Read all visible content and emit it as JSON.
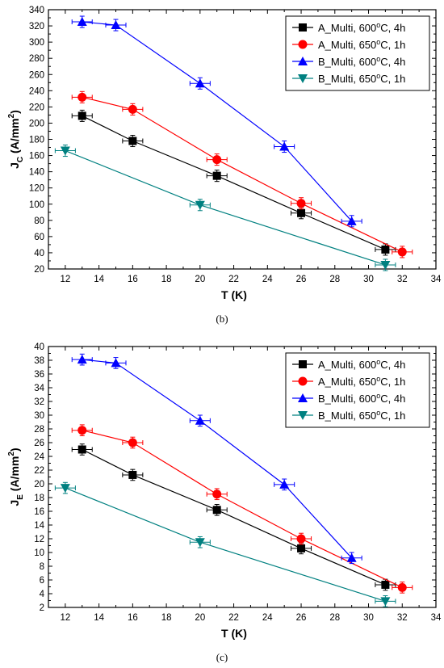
{
  "chart_data": [
    {
      "panel_label": "(b)",
      "type": "line",
      "ylabel_main": "J",
      "ylabel_sub": "C",
      "ylabel_rest": " (A/mm",
      "ylabel_sup": "2",
      "ylabel_end": ")",
      "xlabel": "T (K)",
      "xlim": [
        11,
        34
      ],
      "ylim": [
        20,
        340
      ],
      "xticks": [
        12,
        14,
        16,
        18,
        20,
        22,
        24,
        26,
        28,
        30,
        32,
        34
      ],
      "yticks": [
        20,
        40,
        60,
        80,
        100,
        120,
        140,
        160,
        180,
        200,
        220,
        240,
        260,
        280,
        300,
        320,
        340
      ],
      "grid": false,
      "legend_position": "top-right",
      "series": [
        {
          "name": "A_Multi, 600°C, 4h",
          "label_pre": "A_Multi, 600",
          "label_sup": "o",
          "label_post": "C, 4h",
          "color": "#000000",
          "marker": "square",
          "x": [
            13,
            16,
            21,
            26,
            31
          ],
          "y": [
            209,
            178,
            135,
            89,
            44
          ],
          "yerr": [
            7,
            7,
            7,
            7,
            7
          ],
          "xerr": [
            0.6,
            0.6,
            0.6,
            0.6,
            0.6
          ]
        },
        {
          "name": "A_Multi, 650°C, 1h",
          "label_pre": "A_Multi, 650",
          "label_sup": "o",
          "label_post": "C, 1h",
          "color": "#ff0000",
          "marker": "circle",
          "x": [
            13,
            16,
            21,
            26,
            32
          ],
          "y": [
            232,
            217,
            155,
            101,
            41
          ],
          "yerr": [
            7,
            7,
            7,
            7,
            7
          ],
          "xerr": [
            0.6,
            0.6,
            0.6,
            0.6,
            0.6
          ]
        },
        {
          "name": "B_Multi, 600°C, 4h",
          "label_pre": "B_Multi, 600",
          "label_sup": "o",
          "label_post": "C, 4h",
          "color": "#0000ff",
          "marker": "triangle-up",
          "x": [
            13,
            15,
            20,
            25,
            29
          ],
          "y": [
            325,
            321,
            249,
            171,
            79
          ],
          "yerr": [
            7,
            7,
            7,
            7,
            7
          ],
          "xerr": [
            0.6,
            0.6,
            0.6,
            0.6,
            0.6
          ]
        },
        {
          "name": "B_Multi, 650°C, 1h",
          "label_pre": "B_Multi, 650",
          "label_sup": "o",
          "label_post": "C, 1h",
          "color": "#008080",
          "marker": "triangle-down",
          "x": [
            12,
            20,
            31
          ],
          "y": [
            166,
            99,
            25
          ],
          "yerr": [
            7,
            7,
            7
          ],
          "xerr": [
            0.6,
            0.6,
            0.6
          ]
        }
      ]
    },
    {
      "panel_label": "(c)",
      "type": "line",
      "ylabel_main": "J",
      "ylabel_sub": "E",
      "ylabel_rest": " (A/mm",
      "ylabel_sup": "2",
      "ylabel_end": ")",
      "xlabel": "T (K)",
      "xlim": [
        11,
        34
      ],
      "ylim": [
        2,
        40
      ],
      "xticks": [
        12,
        14,
        16,
        18,
        20,
        22,
        24,
        26,
        28,
        30,
        32,
        34
      ],
      "yticks": [
        2,
        4,
        6,
        8,
        10,
        12,
        14,
        16,
        18,
        20,
        22,
        24,
        26,
        28,
        30,
        32,
        34,
        36,
        38,
        40
      ],
      "grid": false,
      "legend_position": "top-right",
      "series": [
        {
          "name": "A_Multi, 600°C, 4h",
          "label_pre": "A_Multi, 600",
          "label_sup": "o",
          "label_post": "C, 4h",
          "color": "#000000",
          "marker": "square",
          "x": [
            13,
            16,
            21,
            26,
            31
          ],
          "y": [
            25.0,
            21.3,
            16.2,
            10.6,
            5.3
          ],
          "yerr": [
            0.8,
            0.8,
            0.8,
            0.8,
            0.8
          ],
          "xerr": [
            0.6,
            0.6,
            0.6,
            0.6,
            0.6
          ]
        },
        {
          "name": "A_Multi, 650°C, 1h",
          "label_pre": "A_Multi, 650",
          "label_sup": "o",
          "label_post": "C, 1h",
          "color": "#ff0000",
          "marker": "circle",
          "x": [
            13,
            16,
            21,
            26,
            32
          ],
          "y": [
            27.8,
            26.0,
            18.5,
            12.0,
            4.9
          ],
          "yerr": [
            0.8,
            0.8,
            0.8,
            0.8,
            0.8
          ],
          "xerr": [
            0.6,
            0.6,
            0.6,
            0.6,
            0.6
          ]
        },
        {
          "name": "B_Multi, 600°C, 4h",
          "label_pre": "B_Multi, 600",
          "label_sup": "o",
          "label_post": "C, 4h",
          "color": "#0000ff",
          "marker": "triangle-up",
          "x": [
            13,
            15,
            20,
            25,
            29
          ],
          "y": [
            38.1,
            37.6,
            29.2,
            19.9,
            9.2
          ],
          "yerr": [
            0.8,
            0.8,
            0.8,
            0.8,
            0.8
          ],
          "xerr": [
            0.6,
            0.6,
            0.6,
            0.6,
            0.6
          ]
        },
        {
          "name": "B_Multi, 650°C, 1h",
          "label_pre": "B_Multi, 650",
          "label_sup": "o",
          "label_post": "C, 1h",
          "color": "#008080",
          "marker": "triangle-down",
          "x": [
            12,
            20,
            31
          ],
          "y": [
            19.4,
            11.5,
            2.9
          ],
          "yerr": [
            0.8,
            0.8,
            0.8
          ],
          "xerr": [
            0.6,
            0.6,
            0.6
          ]
        }
      ]
    }
  ]
}
